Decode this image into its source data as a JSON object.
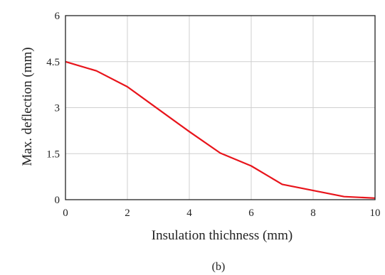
{
  "chart_data": {
    "type": "line",
    "title": "",
    "xlabel": "Insulation thichness (mm)",
    "ylabel": "Max. deflection  (mm)",
    "xlim": [
      0,
      10
    ],
    "ylim": [
      0,
      6
    ],
    "xticks": [
      0,
      2,
      4,
      6,
      8,
      10
    ],
    "xtick_labels": [
      "0",
      "2",
      "4",
      "6",
      "8",
      "10"
    ],
    "yticks": [
      0,
      1.5,
      3,
      4.5,
      6
    ],
    "ytick_labels": [
      "0",
      "1.5",
      "3",
      "4.5",
      "6"
    ],
    "grid": true,
    "series": [
      {
        "color": "#e8141b",
        "x": [
          0,
          1,
          2,
          3,
          4,
          5,
          6,
          7,
          8,
          9,
          10
        ],
        "y": [
          4.5,
          4.2,
          3.68,
          2.95,
          2.22,
          1.52,
          1.1,
          0.5,
          0.3,
          0.1,
          0.05
        ]
      }
    ],
    "caption": "(b)"
  }
}
